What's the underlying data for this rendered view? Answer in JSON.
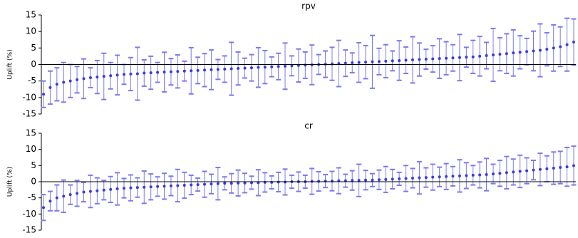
{
  "chart_data": [
    {
      "type": "errorbar",
      "title": "rpv",
      "ylabel": "Uplift (%)",
      "color": "#3a3ae0",
      "error_color": "#7a7aee",
      "values": [
        -9,
        -7,
        -6,
        -5.4,
        -5,
        -4.6,
        -4.3,
        -4,
        -3.8,
        -3.6,
        -3.4,
        -3.2,
        -3,
        -2.9,
        -2.8,
        -2.6,
        -2.5,
        -2.4,
        -2.3,
        -2.2,
        -2.1,
        -2,
        -1.9,
        -1.8,
        -1.7,
        -1.6,
        -1.5,
        -1.4,
        -1.3,
        -1.2,
        -1.1,
        -1,
        -0.9,
        -0.8,
        -0.7,
        -0.6,
        -0.5,
        -0.4,
        -0.3,
        -0.2,
        -0.1,
        0,
        0.1,
        0.2,
        0.3,
        0.4,
        0.5,
        0.6,
        0.7,
        0.8,
        0.9,
        1,
        1.1,
        1.2,
        1.3,
        1.4,
        1.5,
        1.6,
        1.7,
        1.8,
        1.9,
        2,
        2.1,
        2.2,
        2.3,
        2.5,
        2.7,
        2.9,
        3.1,
        3.3,
        3.5,
        3.7,
        3.9,
        4.1,
        4.3,
        4.6,
        5,
        5.4,
        6,
        6.8
      ],
      "errors": [
        4,
        5,
        5,
        6,
        5,
        4,
        6,
        3,
        5,
        7,
        4,
        6,
        3,
        5,
        8,
        4,
        5,
        3,
        6,
        4,
        5,
        3,
        7,
        4,
        5,
        6,
        3,
        4,
        8,
        5,
        3,
        4,
        6,
        5,
        3,
        4,
        7,
        3,
        5,
        4,
        6,
        3,
        4,
        5,
        7,
        4,
        3,
        6,
        5,
        8,
        4,
        5,
        3,
        6,
        4,
        7,
        5,
        3,
        4,
        6,
        5,
        4,
        7,
        3,
        5,
        6,
        4,
        8,
        5,
        6,
        7,
        5,
        4,
        6,
        8,
        5,
        7,
        6,
        8,
        7
      ],
      "ylim": [
        -15,
        15
      ],
      "yticks": [
        -15,
        -10,
        -5,
        0,
        5,
        10,
        15
      ]
    },
    {
      "type": "errorbar",
      "title": "cr",
      "ylabel": "Uplift (%)",
      "color": "#3a3ae0",
      "error_color": "#7a7aee",
      "values": [
        -8,
        -6,
        -5,
        -4.5,
        -4,
        -3.6,
        -3.2,
        -3,
        -2.8,
        -2.6,
        -2.4,
        -2.2,
        -2,
        -1.9,
        -1.8,
        -1.7,
        -1.6,
        -1.5,
        -1.4,
        -1.3,
        -1.2,
        -1.1,
        -1,
        -0.9,
        -0.8,
        -0.7,
        -0.6,
        -0.5,
        -0.5,
        -0.4,
        -0.4,
        -0.3,
        -0.3,
        -0.2,
        -0.2,
        -0.1,
        -0.1,
        0,
        0,
        0,
        0.1,
        0.1,
        0.2,
        0.2,
        0.3,
        0.3,
        0.4,
        0.4,
        0.5,
        0.5,
        0.6,
        0.7,
        0.8,
        0.9,
        1,
        1.1,
        1.2,
        1.3,
        1.4,
        1.5,
        1.6,
        1.7,
        1.8,
        1.9,
        2,
        2.1,
        2.2,
        2.4,
        2.6,
        2.8,
        3,
        3.2,
        3.4,
        3.6,
        3.8,
        4,
        4.2,
        4.4,
        4.6,
        5
      ],
      "errors": [
        4,
        3,
        4,
        5,
        3,
        4,
        3,
        5,
        4,
        3,
        4,
        5,
        3,
        4,
        3,
        5,
        4,
        3,
        4,
        3,
        5,
        4,
        3,
        2,
        4,
        3,
        5,
        2,
        3,
        4,
        3,
        2,
        4,
        3,
        2,
        3,
        4,
        2,
        3,
        2,
        4,
        3,
        2,
        3,
        4,
        2,
        3,
        5,
        3,
        2,
        3,
        4,
        3,
        2,
        4,
        3,
        5,
        3,
        4,
        3,
        4,
        3,
        5,
        4,
        3,
        4,
        5,
        3,
        4,
        5,
        4,
        5,
        4,
        3,
        5,
        4,
        5,
        5,
        6,
        6
      ],
      "ylim": [
        -15,
        15
      ],
      "yticks": [
        -15,
        -10,
        -5,
        0,
        5,
        10,
        15
      ]
    }
  ]
}
